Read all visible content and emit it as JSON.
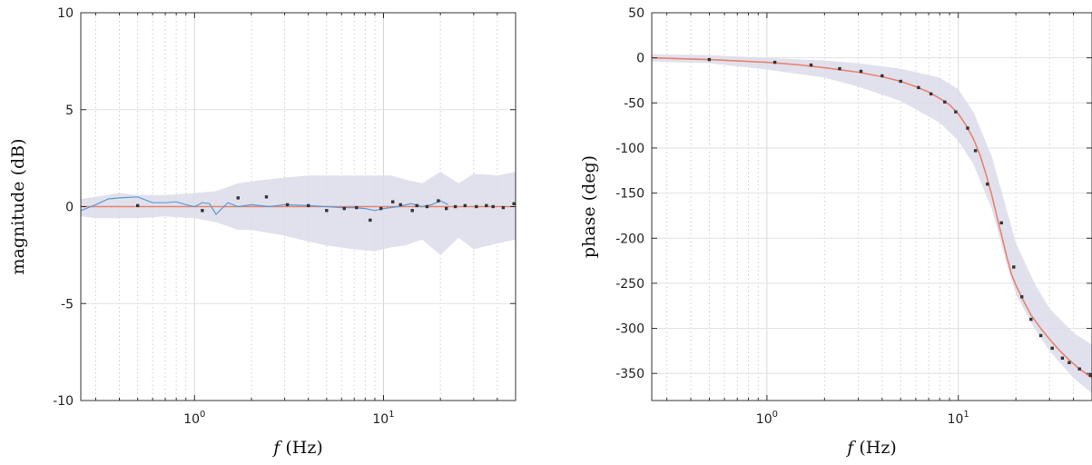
{
  "chart_data": [
    {
      "type": "line",
      "xscale": "log",
      "xlim": [
        0.25,
        50
      ],
      "ylim": [
        -10,
        10
      ],
      "xticks": [
        1,
        10
      ],
      "xtick_labels": [
        {
          "base": "10",
          "exp": "0"
        },
        {
          "base": "10",
          "exp": "1"
        }
      ],
      "yticks": [
        -10,
        -5,
        0,
        5,
        10
      ],
      "ytick_labels": [
        "-10",
        "-5",
        "0",
        "5",
        "10"
      ],
      "xlabel": {
        "var": "f",
        "unit": "(Hz)"
      },
      "ylabel": "magnitude (dB)",
      "grid": true,
      "colors": {
        "model": "#e8836f",
        "estimate": "#5b9bd5",
        "band": "#dcdcea",
        "points": "#333333"
      },
      "band": {
        "x": [
          0.25,
          0.3,
          0.4,
          0.5,
          0.7,
          1.0,
          1.3,
          1.7,
          2.0,
          3.0,
          4.0,
          5.0,
          7.0,
          9.0,
          11.0,
          13.0,
          16.0,
          20.0,
          25.0,
          30.0,
          40.0,
          50.0
        ],
        "upper": [
          0.4,
          0.5,
          0.7,
          0.6,
          0.6,
          0.7,
          0.8,
          1.2,
          1.3,
          1.5,
          1.6,
          1.6,
          1.6,
          1.6,
          1.6,
          1.4,
          1.2,
          1.8,
          1.2,
          1.7,
          1.6,
          1.8
        ],
        "lower": [
          -0.5,
          -0.6,
          -0.6,
          -0.6,
          -0.5,
          -0.6,
          -0.8,
          -1.2,
          -1.2,
          -1.5,
          -1.8,
          -2.0,
          -2.2,
          -2.3,
          -2.1,
          -2.0,
          -1.7,
          -2.5,
          -1.6,
          -2.2,
          -1.9,
          -1.7
        ]
      },
      "series": [
        {
          "role": "model",
          "x": [
            0.25,
            50
          ],
          "y": [
            0,
            0
          ]
        },
        {
          "role": "estimate",
          "x": [
            0.25,
            0.3,
            0.35,
            0.4,
            0.5,
            0.6,
            0.7,
            0.8,
            0.9,
            1.0,
            1.1,
            1.2,
            1.3,
            1.5,
            1.7,
            2.0,
            2.5,
            3.0,
            4.0,
            5.0,
            6.0,
            7.0,
            8.0,
            9.0,
            10.0,
            12.0,
            14.0,
            16.0,
            18.0,
            20.0,
            22.0
          ],
          "y": [
            -0.2,
            0.1,
            0.4,
            0.45,
            0.5,
            0.2,
            0.2,
            0.25,
            0.1,
            0.0,
            0.2,
            0.15,
            -0.4,
            0.2,
            0.0,
            0.1,
            0.0,
            0.1,
            0.05,
            0.0,
            -0.05,
            -0.05,
            -0.1,
            -0.2,
            -0.1,
            0.0,
            0.15,
            0.0,
            0.1,
            0.3,
            0.1
          ]
        },
        {
          "role": "points",
          "x": [
            0.5,
            1.1,
            1.7,
            2.4,
            3.1,
            4.0,
            5.0,
            6.2,
            7.2,
            8.5,
            9.7,
            11.2,
            12.3,
            14.2,
            15.0,
            17.0,
            19.5,
            21.5,
            24.0,
            27.0,
            31.0,
            35.0,
            38.0,
            43.0,
            49.0
          ],
          "y": [
            0.05,
            -0.2,
            0.45,
            0.5,
            0.1,
            0.05,
            -0.2,
            -0.1,
            -0.05,
            -0.7,
            -0.1,
            0.25,
            0.1,
            -0.2,
            0.05,
            0.0,
            0.3,
            -0.1,
            0.0,
            0.05,
            0.0,
            0.05,
            0.0,
            -0.05,
            0.15
          ]
        }
      ]
    },
    {
      "type": "line",
      "xscale": "log",
      "xlim": [
        0.25,
        50
      ],
      "ylim": [
        -380,
        50
      ],
      "xticks": [
        1,
        10
      ],
      "xtick_labels": [
        {
          "base": "10",
          "exp": "0"
        },
        {
          "base": "10",
          "exp": "1"
        }
      ],
      "yticks": [
        -350,
        -300,
        -250,
        -200,
        -150,
        -100,
        -50,
        0,
        50
      ],
      "ytick_labels": [
        "-350",
        "-300",
        "-250",
        "-200",
        "-150",
        "-100",
        "-50",
        "0",
        "50"
      ],
      "xlabel": {
        "var": "f",
        "unit": "(Hz)"
      },
      "ylabel": "phase (deg)",
      "grid": true,
      "colors": {
        "model": "#e8836f",
        "estimate": "#5b9bd5",
        "band": "#dcdcea",
        "points": "#333333"
      },
      "band": {
        "x": [
          0.25,
          0.5,
          1.0,
          2.0,
          3.0,
          5.0,
          8.0,
          10.0,
          12.0,
          15.0,
          18.0,
          20.0,
          25.0,
          30.0,
          40.0,
          50.0
        ],
        "upper": [
          4,
          3,
          0,
          -3,
          -6,
          -12,
          -22,
          -35,
          -60,
          -110,
          -170,
          -205,
          -250,
          -278,
          -305,
          -318
        ],
        "lower": [
          -4,
          -6,
          -13,
          -22,
          -32,
          -48,
          -72,
          -92,
          -118,
          -168,
          -230,
          -262,
          -300,
          -325,
          -355,
          -372
        ]
      },
      "series": [
        {
          "role": "model",
          "x": [
            0.25,
            0.5,
            1.0,
            1.5,
            2.0,
            3.0,
            4.0,
            5.0,
            6.0,
            7.0,
            8.0,
            9.0,
            10.0,
            11.0,
            12.0,
            13.0,
            14.0,
            15.0,
            16.0,
            17.0,
            18.0,
            19.0,
            20.0,
            22.0,
            24.0,
            27.0,
            30.0,
            34.0,
            38.0,
            43.0,
            50.0
          ],
          "y": [
            0,
            -2,
            -5,
            -8,
            -11,
            -16,
            -21,
            -26,
            -32,
            -38,
            -45,
            -52,
            -62,
            -75,
            -90,
            -108,
            -130,
            -153,
            -178,
            -200,
            -222,
            -240,
            -252,
            -270,
            -285,
            -300,
            -312,
            -325,
            -335,
            -345,
            -355
          ]
        },
        {
          "role": "points",
          "x": [
            0.5,
            1.1,
            1.7,
            2.4,
            3.1,
            4.0,
            5.0,
            6.2,
            7.2,
            8.5,
            9.7,
            11.2,
            12.3,
            14.2,
            16.8,
            19.5,
            21.5,
            24.0,
            27.0,
            31.0,
            35.0,
            38.0,
            43.0,
            49.0
          ],
          "y": [
            -2,
            -5,
            -8,
            -12,
            -15,
            -20,
            -26,
            -33,
            -40,
            -49,
            -60,
            -78,
            -103,
            -140,
            -183,
            -232,
            -265,
            -290,
            -308,
            -322,
            -333,
            -338,
            -345,
            -352
          ]
        }
      ]
    }
  ]
}
